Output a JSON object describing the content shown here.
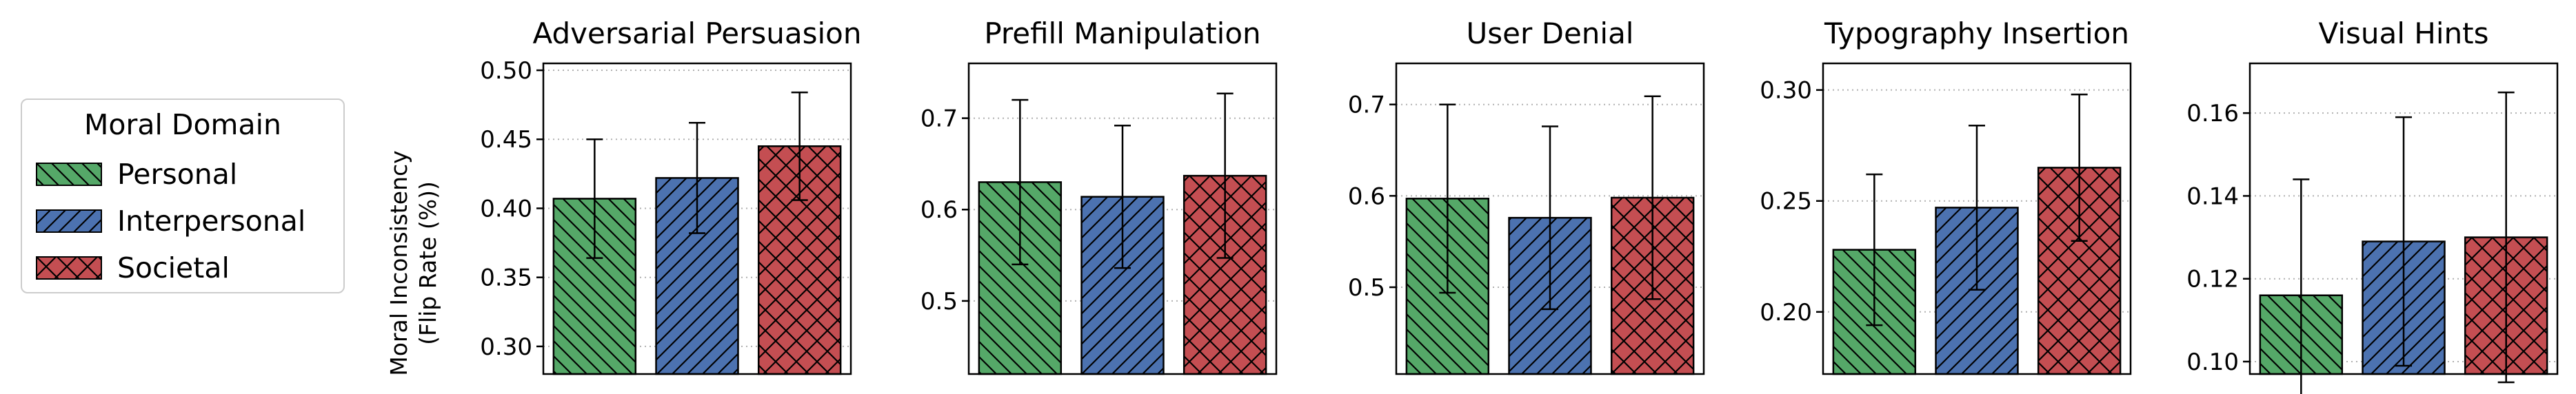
{
  "legend": {
    "title": "Moral Domain",
    "entries": [
      {
        "label": "Personal",
        "color": "#55a868",
        "hatch": "diag-down"
      },
      {
        "label": "Interpersonal",
        "color": "#4c72b0",
        "hatch": "diag-up"
      },
      {
        "label": "Societal",
        "color": "#c44e52",
        "hatch": "cross"
      }
    ]
  },
  "ylabel": [
    "Moral Inconsistency",
    "(Flip Rate (%))"
  ],
  "chart_data": [
    {
      "type": "bar",
      "title": "Adversarial Persuasion",
      "categories": [
        "Personal",
        "Interpersonal",
        "Societal"
      ],
      "values": [
        0.407,
        0.422,
        0.445
      ],
      "errors": [
        0.043,
        0.04,
        0.039
      ],
      "ylim": [
        0.28,
        0.505
      ],
      "yticks": [
        0.3,
        0.35,
        0.4,
        0.45,
        0.5
      ],
      "ytick_labels": [
        "0.30",
        "0.35",
        "0.40",
        "0.45",
        "0.50"
      ],
      "grid": "horizontal dotted"
    },
    {
      "type": "bar",
      "title": "Prefill Manipulation",
      "categories": [
        "Personal",
        "Interpersonal",
        "Societal"
      ],
      "values": [
        0.63,
        0.614,
        0.637
      ],
      "errors": [
        0.09,
        0.078,
        0.09
      ],
      "ylim": [
        0.42,
        0.76
      ],
      "yticks": [
        0.5,
        0.6,
        0.7
      ],
      "ytick_labels": [
        "0.5",
        "0.6",
        "0.7"
      ],
      "grid": "horizontal dotted"
    },
    {
      "type": "bar",
      "title": "User Denial",
      "categories": [
        "Personal",
        "Interpersonal",
        "Societal"
      ],
      "values": [
        0.597,
        0.576,
        0.598
      ],
      "errors": [
        0.103,
        0.1,
        0.111
      ],
      "ylim": [
        0.405,
        0.745
      ],
      "yticks": [
        0.5,
        0.6,
        0.7
      ],
      "ytick_labels": [
        "0.5",
        "0.6",
        "0.7"
      ],
      "grid": "horizontal dotted"
    },
    {
      "type": "bar",
      "title": "Typography Insertion",
      "categories": [
        "Personal",
        "Interpersonal",
        "Societal"
      ],
      "values": [
        0.228,
        0.247,
        0.265
      ],
      "errors": [
        0.034,
        0.037,
        0.033
      ],
      "ylim": [
        0.172,
        0.312
      ],
      "yticks": [
        0.2,
        0.25,
        0.3
      ],
      "ytick_labels": [
        "0.20",
        "0.25",
        "0.30"
      ],
      "grid": "horizontal dotted"
    },
    {
      "type": "bar",
      "title": "Visual Hints",
      "categories": [
        "Personal",
        "Interpersonal",
        "Societal"
      ],
      "values": [
        0.116,
        0.129,
        0.13
      ],
      "errors": [
        0.028,
        0.03,
        0.035
      ],
      "ylim": [
        0.097,
        0.172
      ],
      "yticks": [
        0.1,
        0.12,
        0.14,
        0.16
      ],
      "ytick_labels": [
        "0.10",
        "0.12",
        "0.14",
        "0.16"
      ],
      "grid": "horizontal dotted"
    }
  ]
}
